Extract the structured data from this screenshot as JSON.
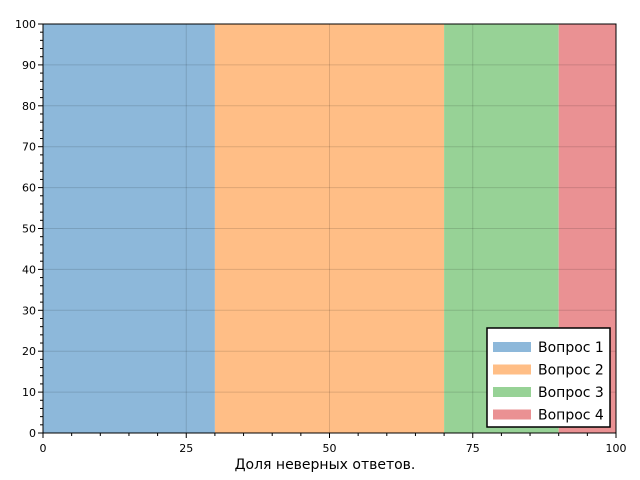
{
  "chart_data": {
    "type": "area",
    "orientation": "horizontal-stacked-bands",
    "xlabel": "Доля неверных ответов.",
    "ylabel": "",
    "xlim": [
      0,
      100
    ],
    "ylim": [
      0,
      100
    ],
    "x_ticks": [
      0,
      25,
      50,
      75,
      100
    ],
    "y_ticks": [
      0,
      10,
      20,
      30,
      40,
      50,
      60,
      70,
      80,
      90,
      100
    ],
    "grid": true,
    "legend_position": "bottom-right",
    "series": [
      {
        "name": "Вопрос 1",
        "start": 0,
        "end": 30,
        "color": "#8db8da"
      },
      {
        "name": "Вопрос 2",
        "start": 30,
        "end": 70,
        "color": "#ffbe86"
      },
      {
        "name": "Вопрос 3",
        "start": 70,
        "end": 90,
        "color": "#97d296"
      },
      {
        "name": "Вопрос 4",
        "start": 90,
        "end": 100,
        "color": "#ea9193"
      }
    ]
  }
}
